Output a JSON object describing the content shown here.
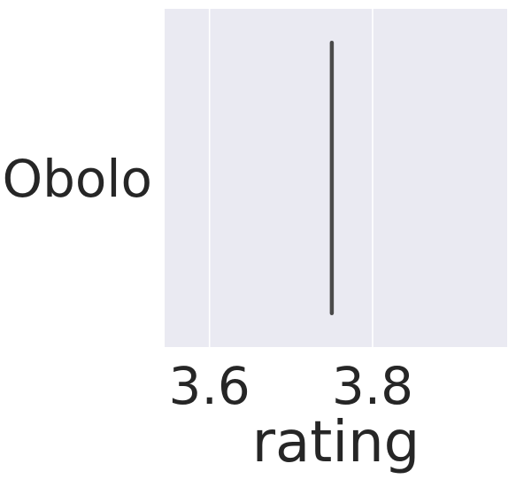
{
  "chart_data": {
    "type": "box",
    "orientation": "horizontal",
    "categories": [
      "Obolo"
    ],
    "series": [
      {
        "values": [
          3.75
        ]
      }
    ],
    "xlabel": "rating",
    "ylabel": "",
    "xlim": [
      3.545,
      3.965
    ],
    "xticks": [
      3.6,
      3.8
    ],
    "xtick_labels": [
      "3.6",
      "3.8"
    ],
    "grid": true,
    "legend": "none",
    "colors": {
      "plot_background": "#eaeaf2",
      "grid": "#ffffff",
      "mark": "#4a4a4a",
      "text": "#262626"
    }
  }
}
